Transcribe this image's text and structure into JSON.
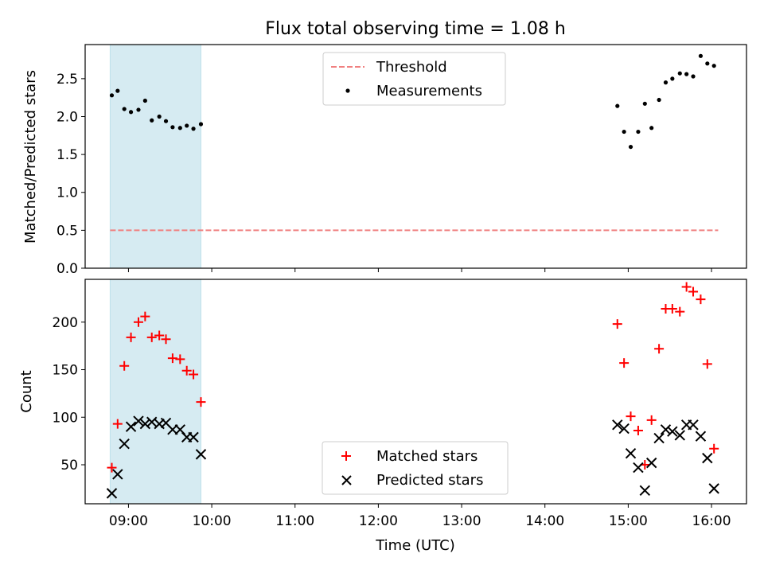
{
  "chart_data": [
    {
      "type": "scatter",
      "title": "Flux total observing time = 1.08 h",
      "ylabel": "Matched/Predicted stars",
      "xlim": [
        8.48,
        16.42
      ],
      "ylim": [
        0.0,
        2.95
      ],
      "yticks": [
        0.0,
        0.5,
        1.0,
        1.5,
        2.0,
        2.5
      ],
      "ytick_labels": [
        "0.0",
        "0.5",
        "1.0",
        "1.5",
        "2.0",
        "2.5"
      ],
      "shaded_span": [
        8.78,
        9.87
      ],
      "legend": [
        "Threshold",
        "Measurements"
      ],
      "threshold": {
        "name": "Threshold",
        "value": 0.5,
        "x_range": [
          8.78,
          16.08
        ],
        "color": "#f08080"
      },
      "series": [
        {
          "name": "Measurements",
          "color": "#000000",
          "x": [
            8.8,
            8.87,
            8.95,
            9.03,
            9.12,
            9.2,
            9.28,
            9.37,
            9.45,
            9.53,
            9.62,
            9.7,
            9.78,
            9.87,
            14.87,
            14.95,
            15.03,
            15.12,
            15.2,
            15.28,
            15.37,
            15.45,
            15.53,
            15.62,
            15.7,
            15.78,
            15.87,
            15.95,
            16.03
          ],
          "y": [
            2.28,
            2.34,
            2.1,
            2.06,
            2.09,
            2.21,
            1.95,
            2.0,
            1.94,
            1.86,
            1.85,
            1.88,
            1.84,
            1.9,
            2.14,
            1.8,
            1.6,
            1.8,
            2.17,
            1.85,
            2.22,
            2.45,
            2.5,
            2.57,
            2.56,
            2.53,
            2.8,
            2.7,
            2.67
          ]
        }
      ]
    },
    {
      "type": "scatter",
      "xlabel": "Time (UTC)",
      "ylabel": "Count",
      "xlim": [
        8.48,
        16.42
      ],
      "ylim": [
        9,
        245
      ],
      "xticks": [
        9,
        10,
        11,
        12,
        13,
        14,
        15,
        16
      ],
      "xtick_labels": [
        "09:00",
        "10:00",
        "11:00",
        "12:00",
        "13:00",
        "14:00",
        "15:00",
        "16:00"
      ],
      "yticks": [
        50,
        100,
        150,
        200
      ],
      "ytick_labels": [
        "50",
        "100",
        "150",
        "200"
      ],
      "shaded_span": [
        8.78,
        9.87
      ],
      "legend": [
        "Matched stars",
        "Predicted stars"
      ],
      "series": [
        {
          "name": "Matched stars",
          "marker": "+",
          "color": "#ff0000",
          "x": [
            8.8,
            8.87,
            8.95,
            9.03,
            9.12,
            9.2,
            9.28,
            9.37,
            9.45,
            9.53,
            9.62,
            9.7,
            9.78,
            9.87,
            14.87,
            14.95,
            15.03,
            15.12,
            15.2,
            15.28,
            15.37,
            15.45,
            15.53,
            15.62,
            15.7,
            15.78,
            15.87,
            15.95,
            16.03
          ],
          "y": [
            47,
            93,
            154,
            184,
            200,
            206,
            184,
            186,
            182,
            162,
            161,
            149,
            145,
            116,
            198,
            157,
            101,
            86,
            50,
            97,
            172,
            214,
            214,
            211,
            237,
            232,
            224,
            156,
            67
          ]
        },
        {
          "name": "Predicted stars",
          "marker": "x",
          "color": "#000000",
          "x": [
            8.8,
            8.87,
            8.95,
            9.03,
            9.12,
            9.2,
            9.28,
            9.37,
            9.45,
            9.53,
            9.62,
            9.7,
            9.78,
            9.87,
            14.87,
            14.95,
            15.03,
            15.12,
            15.2,
            15.28,
            15.37,
            15.45,
            15.53,
            15.62,
            15.7,
            15.78,
            15.87,
            15.95,
            16.03
          ],
          "y": [
            20,
            40,
            72,
            90,
            96,
            93,
            95,
            93,
            94,
            87,
            87,
            79,
            79,
            61,
            92,
            88,
            62,
            47,
            23,
            52,
            78,
            87,
            85,
            81,
            92,
            92,
            80,
            57,
            25
          ]
        }
      ]
    }
  ]
}
